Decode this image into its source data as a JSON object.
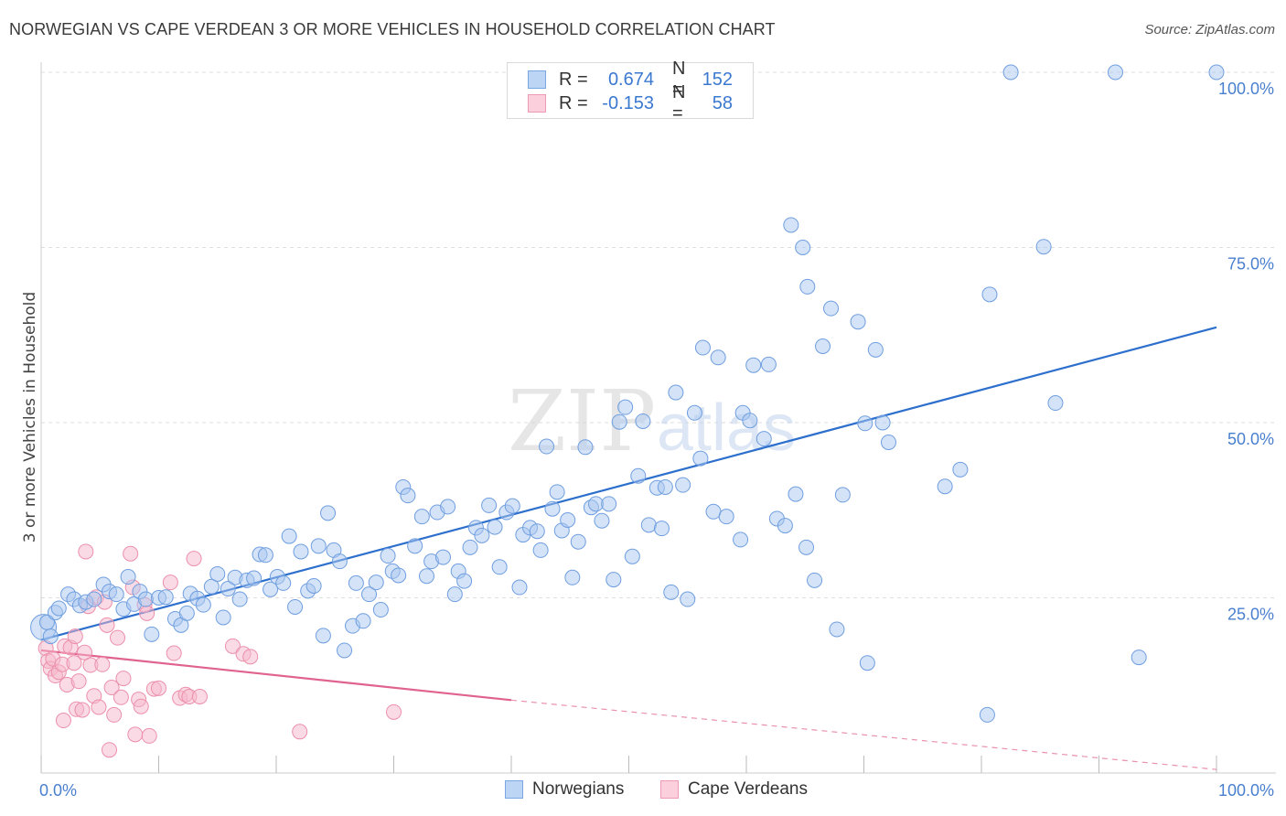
{
  "title": "NORWEGIAN VS CAPE VERDEAN 3 OR MORE VEHICLES IN HOUSEHOLD CORRELATION CHART",
  "source": "Source: ZipAtlas.com",
  "watermark": {
    "zip": "ZIP",
    "atlas": "atlas"
  },
  "legend": {
    "rows": [
      {
        "r_label": "R =",
        "r_value": "0.674",
        "n_label": "N =",
        "n_value": "152"
      },
      {
        "r_label": "R =",
        "r_value": "-0.153",
        "n_label": "N =",
        "n_value": "58"
      }
    ]
  },
  "bottom_legend": [
    "Norwegians",
    "Cape Verdeans"
  ],
  "colors": {
    "blue_fill": "#a9c8f0",
    "blue_stroke": "#6f9ee0",
    "blue_line": "#2d6fcc",
    "pink_fill": "#f6b8cb",
    "pink_stroke": "#ec8fac",
    "pink_line": "#e0628f",
    "grid": "#dddddd",
    "tick_text": "#4a7fcf"
  },
  "chart_data": {
    "type": "scatter",
    "title": "NORWEGIAN VS CAPE VERDEAN 3 OR MORE VEHICLES IN HOUSEHOLD CORRELATION CHART",
    "xlabel": "",
    "ylabel": "3 or more Vehicles in Household",
    "xlim": [
      0,
      100
    ],
    "ylim": [
      0,
      100
    ],
    "x_tick_labels": [
      "0.0%",
      "100.0%"
    ],
    "y_ticks": [
      25,
      50,
      75,
      100
    ],
    "y_tick_labels": [
      "25.0%",
      "50.0%",
      "75.0%",
      "100.0%"
    ],
    "grid": true,
    "legend_position": "top-center",
    "series": [
      {
        "name": "Norwegians",
        "r": 0.674,
        "n": 152,
        "trend": {
          "x": [
            0,
            100
          ],
          "y": [
            19.0,
            63.6
          ]
        },
        "points": [
          [
            0.2,
            20.8
          ],
          [
            0.5,
            21.5
          ],
          [
            0.8,
            19.5
          ],
          [
            1.2,
            22.9
          ],
          [
            1.5,
            23.5
          ],
          [
            2.3,
            25.5
          ],
          [
            2.8,
            24.8
          ],
          [
            3.3,
            23.9
          ],
          [
            3.8,
            24.4
          ],
          [
            4.5,
            24.8
          ],
          [
            5.3,
            26.9
          ],
          [
            5.8,
            25.9
          ],
          [
            6.4,
            25.5
          ],
          [
            7.0,
            23.4
          ],
          [
            7.4,
            28.0
          ],
          [
            7.9,
            24.1
          ],
          [
            8.4,
            25.9
          ],
          [
            8.9,
            24.8
          ],
          [
            9.4,
            19.8
          ],
          [
            10.0,
            25.0
          ],
          [
            10.6,
            25.1
          ],
          [
            11.4,
            22.0
          ],
          [
            11.9,
            21.1
          ],
          [
            12.4,
            22.8
          ],
          [
            12.7,
            25.6
          ],
          [
            13.3,
            24.9
          ],
          [
            13.8,
            24.0
          ],
          [
            14.5,
            26.6
          ],
          [
            15.0,
            28.4
          ],
          [
            15.5,
            22.2
          ],
          [
            15.9,
            26.3
          ],
          [
            16.5,
            27.9
          ],
          [
            16.9,
            24.8
          ],
          [
            17.5,
            27.5
          ],
          [
            18.1,
            27.8
          ],
          [
            18.6,
            31.2
          ],
          [
            19.1,
            31.1
          ],
          [
            19.5,
            26.2
          ],
          [
            20.1,
            28.0
          ],
          [
            20.6,
            27.1
          ],
          [
            21.1,
            33.8
          ],
          [
            21.6,
            23.7
          ],
          [
            22.1,
            31.6
          ],
          [
            22.7,
            26.0
          ],
          [
            23.2,
            26.7
          ],
          [
            23.6,
            32.4
          ],
          [
            24.0,
            19.6
          ],
          [
            24.4,
            37.1
          ],
          [
            24.9,
            31.8
          ],
          [
            25.4,
            30.2
          ],
          [
            25.8,
            17.5
          ],
          [
            26.5,
            21.0
          ],
          [
            26.8,
            27.1
          ],
          [
            27.4,
            21.7
          ],
          [
            27.9,
            25.5
          ],
          [
            28.5,
            27.2
          ],
          [
            28.9,
            23.3
          ],
          [
            29.5,
            31.0
          ],
          [
            29.9,
            28.8
          ],
          [
            30.4,
            28.2
          ],
          [
            30.8,
            40.8
          ],
          [
            31.2,
            39.6
          ],
          [
            31.8,
            32.4
          ],
          [
            32.4,
            36.6
          ],
          [
            32.8,
            28.1
          ],
          [
            33.2,
            30.2
          ],
          [
            33.7,
            37.2
          ],
          [
            34.2,
            30.8
          ],
          [
            34.6,
            38.0
          ],
          [
            35.2,
            25.5
          ],
          [
            35.5,
            28.8
          ],
          [
            36.0,
            27.4
          ],
          [
            36.5,
            32.2
          ],
          [
            37.0,
            35.0
          ],
          [
            37.5,
            33.9
          ],
          [
            38.1,
            38.2
          ],
          [
            38.6,
            35.1
          ],
          [
            39.0,
            29.4
          ],
          [
            39.6,
            37.2
          ],
          [
            40.1,
            38.1
          ],
          [
            40.7,
            26.5
          ],
          [
            41.0,
            34.0
          ],
          [
            41.6,
            35.0
          ],
          [
            42.2,
            34.5
          ],
          [
            42.5,
            31.8
          ],
          [
            43.0,
            46.6
          ],
          [
            43.5,
            37.7
          ],
          [
            43.9,
            40.1
          ],
          [
            44.3,
            34.6
          ],
          [
            44.8,
            36.1
          ],
          [
            45.2,
            27.9
          ],
          [
            45.7,
            33.0
          ],
          [
            46.3,
            46.5
          ],
          [
            46.8,
            37.9
          ],
          [
            47.2,
            38.4
          ],
          [
            47.7,
            36.0
          ],
          [
            48.3,
            38.4
          ],
          [
            48.7,
            27.6
          ],
          [
            49.2,
            50.1
          ],
          [
            49.7,
            52.2
          ],
          [
            50.3,
            30.9
          ],
          [
            50.8,
            42.4
          ],
          [
            51.2,
            50.2
          ],
          [
            51.7,
            35.4
          ],
          [
            52.4,
            40.7
          ],
          [
            52.8,
            34.9
          ],
          [
            53.1,
            40.8
          ],
          [
            53.6,
            25.8
          ],
          [
            54.0,
            54.3
          ],
          [
            54.6,
            41.1
          ],
          [
            55.0,
            24.8
          ],
          [
            55.6,
            51.4
          ],
          [
            56.1,
            44.9
          ],
          [
            56.3,
            60.7
          ],
          [
            57.2,
            37.3
          ],
          [
            57.6,
            59.3
          ],
          [
            58.3,
            36.6
          ],
          [
            59.5,
            33.3
          ],
          [
            59.7,
            51.4
          ],
          [
            60.3,
            50.3
          ],
          [
            60.6,
            58.2
          ],
          [
            61.5,
            47.7
          ],
          [
            61.9,
            58.3
          ],
          [
            62.6,
            36.3
          ],
          [
            63.3,
            35.3
          ],
          [
            63.8,
            78.2
          ],
          [
            64.2,
            39.8
          ],
          [
            64.8,
            75.0
          ],
          [
            65.2,
            69.4
          ],
          [
            65.1,
            32.2
          ],
          [
            65.8,
            27.5
          ],
          [
            66.5,
            60.9
          ],
          [
            67.2,
            66.3
          ],
          [
            67.7,
            20.5
          ],
          [
            68.2,
            39.7
          ],
          [
            69.5,
            64.4
          ],
          [
            70.1,
            49.9
          ],
          [
            70.3,
            15.7
          ],
          [
            71.0,
            60.4
          ],
          [
            71.6,
            50.0
          ],
          [
            72.1,
            47.2
          ],
          [
            76.9,
            40.9
          ],
          [
            78.2,
            43.3
          ],
          [
            80.5,
            8.3
          ],
          [
            80.7,
            68.3
          ],
          [
            82.5,
            100.0
          ],
          [
            85.3,
            75.1
          ],
          [
            86.3,
            52.8
          ],
          [
            91.4,
            100.0
          ],
          [
            93.4,
            16.5
          ],
          [
            100.0,
            100.0
          ]
        ],
        "point_sizes": {
          "0.2,20.8": "large"
        }
      },
      {
        "name": "Cape Verdeans",
        "r": -0.153,
        "n": 58,
        "trend": {
          "x": [
            0,
            40
          ],
          "y": [
            17.5,
            10.4
          ],
          "dashed_to": {
            "x": 100,
            "y": 0.5
          }
        },
        "points": [
          [
            0.4,
            17.8
          ],
          [
            0.6,
            16.0
          ],
          [
            0.8,
            14.9
          ],
          [
            1.0,
            16.3
          ],
          [
            1.2,
            13.9
          ],
          [
            1.5,
            14.4
          ],
          [
            1.8,
            15.5
          ],
          [
            1.9,
            7.5
          ],
          [
            2.0,
            18.1
          ],
          [
            2.2,
            12.6
          ],
          [
            2.5,
            17.9
          ],
          [
            2.8,
            15.7
          ],
          [
            2.9,
            19.5
          ],
          [
            3.0,
            9.1
          ],
          [
            3.2,
            13.1
          ],
          [
            3.5,
            9.0
          ],
          [
            3.7,
            17.2
          ],
          [
            3.8,
            31.6
          ],
          [
            4.0,
            23.8
          ],
          [
            4.2,
            15.4
          ],
          [
            4.5,
            11.0
          ],
          [
            4.7,
            25.1
          ],
          [
            4.9,
            9.4
          ],
          [
            5.2,
            15.5
          ],
          [
            5.4,
            24.4
          ],
          [
            5.6,
            21.1
          ],
          [
            5.8,
            3.3
          ],
          [
            6.0,
            12.2
          ],
          [
            6.2,
            8.3
          ],
          [
            6.5,
            19.3
          ],
          [
            6.8,
            10.8
          ],
          [
            7.0,
            13.5
          ],
          [
            7.6,
            31.3
          ],
          [
            7.8,
            26.5
          ],
          [
            8.0,
            5.5
          ],
          [
            8.3,
            10.5
          ],
          [
            8.5,
            9.5
          ],
          [
            8.8,
            24.0
          ],
          [
            9.0,
            22.8
          ],
          [
            9.2,
            5.3
          ],
          [
            9.6,
            12.0
          ],
          [
            10.0,
            12.1
          ],
          [
            11.0,
            27.2
          ],
          [
            11.3,
            17.1
          ],
          [
            11.8,
            10.7
          ],
          [
            12.3,
            11.2
          ],
          [
            12.6,
            10.9
          ],
          [
            13.0,
            30.6
          ],
          [
            13.5,
            10.9
          ],
          [
            16.3,
            18.1
          ],
          [
            17.2,
            17.0
          ],
          [
            17.8,
            16.6
          ],
          [
            22.0,
            5.9
          ],
          [
            30.0,
            8.7
          ]
        ]
      }
    ]
  }
}
